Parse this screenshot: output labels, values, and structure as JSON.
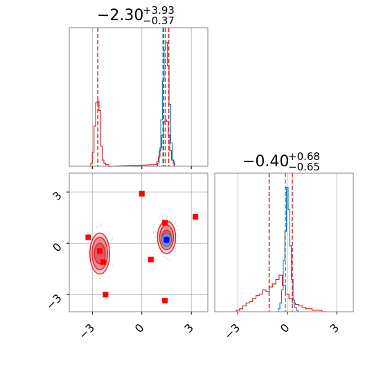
{
  "chart_data": {
    "type": "corner",
    "colors": {
      "red": "#d62728",
      "blue": "#1f77b4",
      "teal": "#17a2a8",
      "marker_red": "#ff0000",
      "marker_blue": "#0000ff",
      "grid": "#b0b0b0",
      "frame": "#808080"
    },
    "panels": {
      "hist_p1": {
        "title": {
          "base": "−2.30",
          "sup": "+3.93",
          "sub": "−0.37"
        },
        "xlim": [
          -4.4,
          4.0
        ],
        "grid_x": [
          -3,
          0,
          3
        ],
        "vlines_red": [
          -2.67,
          1.33,
          1.63
        ],
        "vlines_teal": [
          1.28,
          1.43
        ],
        "hist_red": {
          "bins": [
            -3.05,
            -2.95,
            -2.85,
            -2.75,
            -2.65,
            -2.55,
            -2.45,
            -2.35,
            -2.25,
            -2.15,
            -2.05,
            -1.95,
            0.85,
            0.95,
            1.05,
            1.15,
            1.25,
            1.35,
            1.45,
            1.55,
            1.65,
            1.75,
            1.85,
            1.95
          ],
          "heights": [
            0.02,
            0.09,
            0.26,
            0.41,
            0.42,
            0.36,
            0.13,
            0.04,
            0.02,
            0.01,
            0.01,
            0.0,
            0.01,
            0.03,
            0.06,
            0.12,
            0.2,
            0.28,
            0.3,
            0.29,
            0.2,
            0.1,
            0.04,
            0.02
          ]
        },
        "hist_blue": {
          "bins": [
            1.0,
            1.1,
            1.2,
            1.3,
            1.4,
            1.5,
            1.6,
            1.7,
            1.8,
            1.9
          ],
          "heights": [
            0.02,
            0.1,
            0.3,
            0.55,
            0.75,
            0.8,
            0.65,
            0.4,
            0.15,
            0.04
          ]
        }
      },
      "hist_p2": {
        "title": {
          "base": "−0.40",
          "sup": "+0.68",
          "sub": "−0.65"
        },
        "xlim": [
          -4.4,
          4.0
        ],
        "grid_x": [
          -3,
          0,
          3
        ],
        "vlines_red": [
          -1.1,
          0.3
        ],
        "vlines_teal": [
          -0.12
        ],
        "hist_red": {
          "bins": [
            -3.0,
            -2.8,
            -2.6,
            -2.4,
            -2.2,
            -2.0,
            -1.8,
            -1.6,
            -1.4,
            -1.2,
            -1.0,
            -0.8,
            -0.6,
            -0.4,
            -0.2,
            0.0,
            0.2,
            0.4,
            0.6,
            0.8,
            1.0,
            1.2,
            1.4,
            1.6,
            1.8,
            2.0,
            2.2
          ],
          "heights": [
            0.01,
            0.02,
            0.04,
            0.06,
            0.07,
            0.09,
            0.11,
            0.12,
            0.15,
            0.14,
            0.17,
            0.19,
            0.22,
            0.25,
            0.18,
            0.12,
            0.09,
            0.06,
            0.05,
            0.04,
            0.03,
            0.02,
            0.02,
            0.01,
            0.01,
            0.01,
            0.0
          ]
        },
        "hist_blue": {
          "bins": [
            -0.5,
            -0.4,
            -0.3,
            -0.2,
            -0.1,
            0.0,
            0.1,
            0.2,
            0.3,
            0.4,
            0.5,
            0.6
          ],
          "heights": [
            0.02,
            0.06,
            0.15,
            0.35,
            0.55,
            0.85,
            0.7,
            0.45,
            0.22,
            0.08,
            0.03,
            0.01
          ]
        }
      },
      "scatter": {
        "xlim": [
          -4.4,
          4.0
        ],
        "ylim": [
          -4.0,
          4.1
        ],
        "grid_x": [
          -3,
          0,
          3
        ],
        "grid_y": [
          -3,
          0,
          3
        ],
        "red_contours": [
          {
            "cx": -2.55,
            "cy": -0.6,
            "rx": [
              0.6,
              0.47,
              0.33
            ],
            "ry": [
              1.2,
              0.95,
              0.6
            ]
          },
          {
            "cx": 1.5,
            "cy": 0.35,
            "rx": [
              0.55,
              0.42,
              0.28
            ],
            "ry": [
              0.95,
              0.72,
              0.42
            ]
          }
        ],
        "blue_contours": [
          {
            "cx": 1.5,
            "cy": 0.2,
            "rx": [
              0.3,
              0.16
            ],
            "ry": [
              0.38,
              0.2
            ]
          }
        ],
        "red_squares": [
          {
            "x": 0.0,
            "y": 2.9
          },
          {
            "x": 3.25,
            "y": 1.55
          },
          {
            "x": 1.4,
            "y": 1.2
          },
          {
            "x": -3.25,
            "y": 0.35
          },
          {
            "x": -2.55,
            "y": -0.45
          },
          {
            "x": -2.35,
            "y": -1.1
          },
          {
            "x": 0.55,
            "y": -0.95
          },
          {
            "x": -2.2,
            "y": -3.0
          },
          {
            "x": 1.4,
            "y": -3.35
          }
        ],
        "blue_squares": [
          {
            "x": 1.5,
            "y": 0.2
          }
        ]
      }
    },
    "tick_labels": [
      "−3",
      "0",
      "3"
    ]
  }
}
